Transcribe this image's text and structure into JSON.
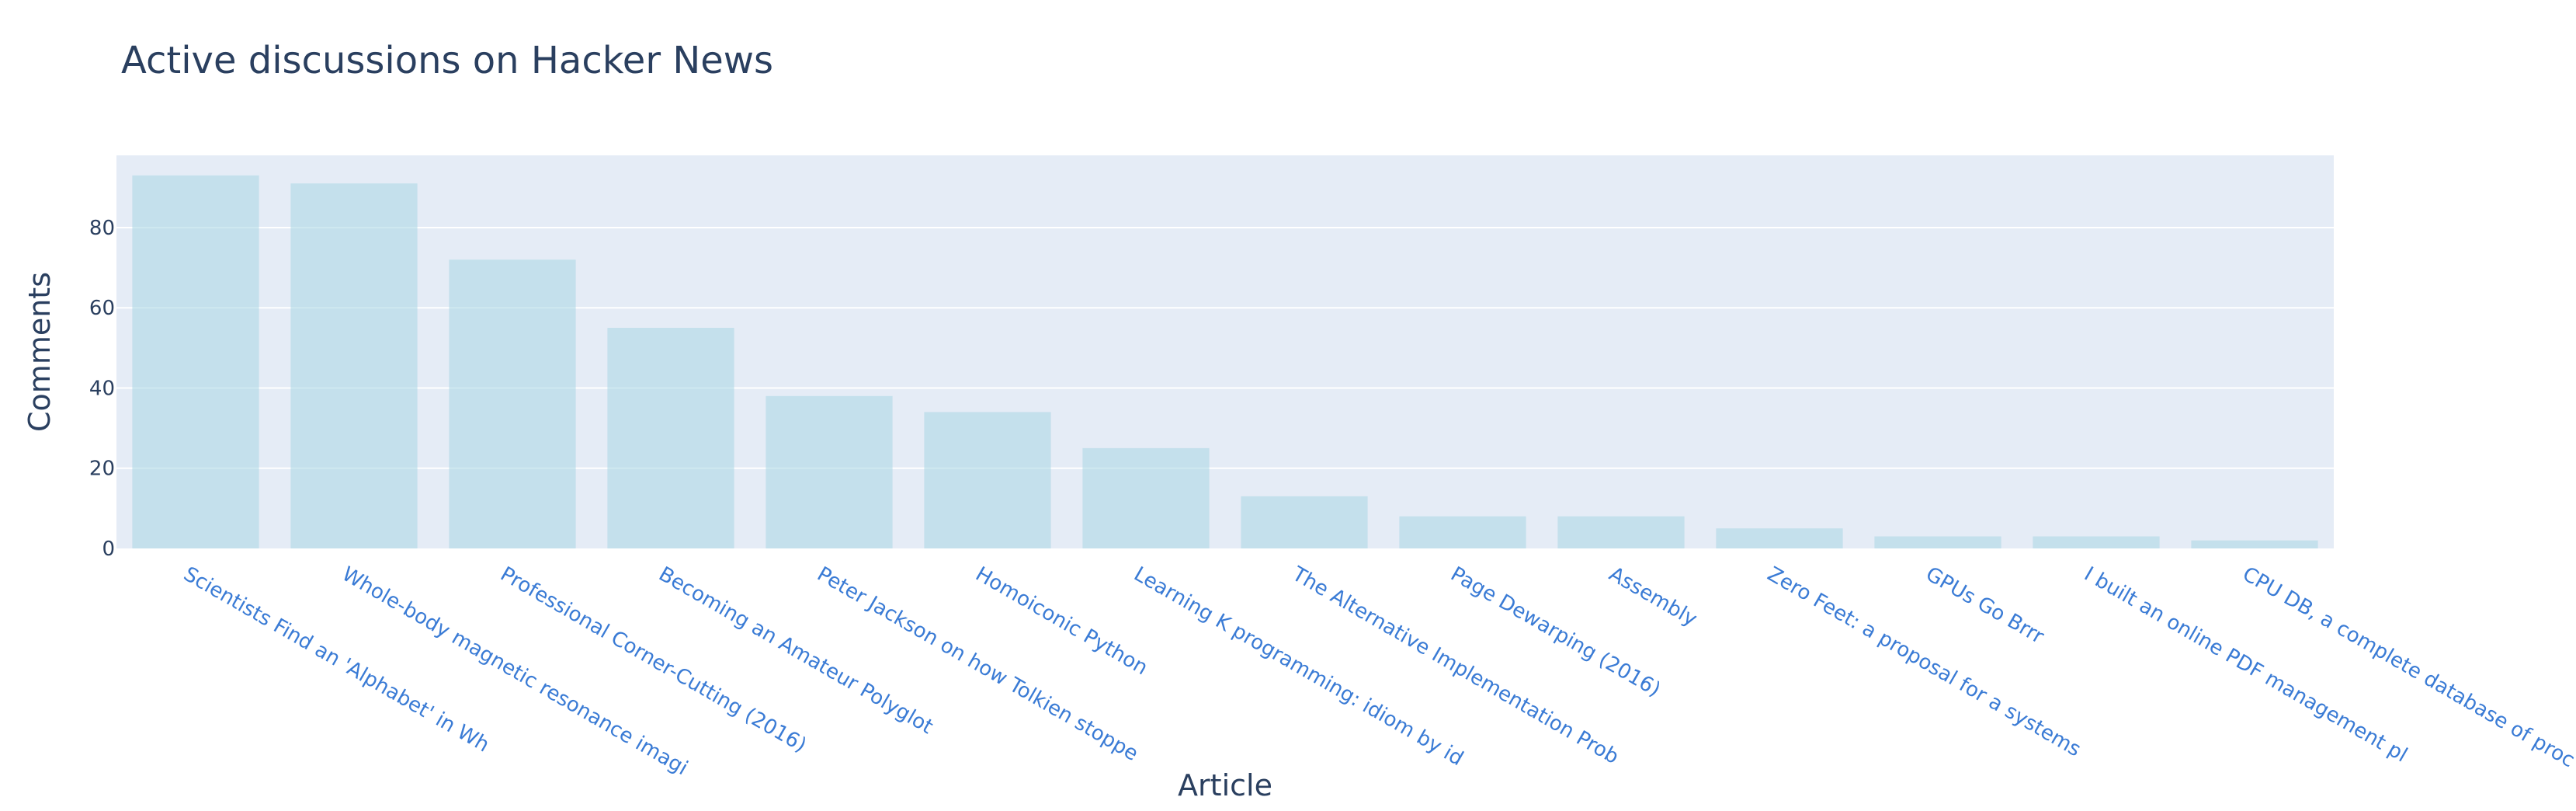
{
  "chart_data": {
    "type": "bar",
    "title": "Active discussions on Hacker News",
    "xlabel": "Article",
    "ylabel": "Comments",
    "categories": [
      "Scientists Find an 'Alphabet' in Wh",
      "Whole-body magnetic resonance imagi",
      "Professional Corner-Cutting (2016)",
      "Becoming an Amateur Polyglot",
      "Peter Jackson on how Tolkien stoppe",
      "Homoiconic Python",
      "Learning K programming: idiom by id",
      "The Alternative Implementation Prob",
      "Page Dewarping (2016)",
      "Assembly",
      "Zero Feet: a proposal for a systems",
      "GPUs Go Brrr",
      "I built an online PDF management pl",
      "CPU DB, a complete database of proc"
    ],
    "values": [
      93,
      91,
      72,
      55,
      38,
      34,
      25,
      13,
      8,
      8,
      5,
      3,
      3,
      2
    ],
    "ylim": [
      0,
      98
    ],
    "yticks": [
      0,
      20,
      40,
      60,
      80
    ],
    "grid": true,
    "legend": "none",
    "colors": {
      "bar": "#add8e6",
      "plot_background": "#e5ecf6",
      "grid": "#ffffff",
      "tick_label_x": "#3a7bd5",
      "text": "#2a3f5f"
    }
  }
}
